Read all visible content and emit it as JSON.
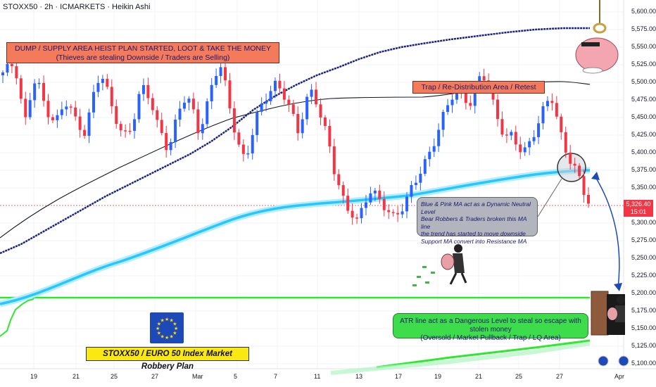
{
  "header": {
    "title": "STOXX50 · 2h · ICMARKETS · Heikin Ashi"
  },
  "annotations": {
    "dump_line1": "DUMP / SUPPLY AREA HEIST PLAN STARTED, LOOT & TAKE THE MONEY",
    "dump_line2": "(Thieves are stealing Downside / Traders are Selling)",
    "trap": "Trap / Re-Distribution Area / Retest",
    "ma_lines": [
      "Blue & Pink MA act as a Dynamic Neutral Level",
      "Bear Robbers & Traders broken this MA line",
      "the trend has started to move downside",
      "Support MA convert into Resistance MA"
    ],
    "atr_line1": "ATR line act as a Dangerous Level to steal so escape with stolen money",
    "atr_line2": "(Oversold / Market Pullback / Trap / LQ Area)",
    "plan": "STOXX50 / EURO 50 Index Market Robbery Plan"
  },
  "price_tag": {
    "value": "5,326.40",
    "timer": "15:01"
  },
  "colors": {
    "up": "#2962ff",
    "down": "#f23645",
    "ma_black": "#131722",
    "ma_cyan": "#26c6ff",
    "atr_green": "#2ee82e",
    "navy": "#1a237e",
    "label_bg": "#f47a5c",
    "flag": "#1e49b8"
  },
  "icons": [
    "eu-flag-icon",
    "thief-pig-icon",
    "running-thief-icon",
    "thief-door-icon",
    "money-icon",
    "arrow-icon"
  ],
  "chart_data": {
    "type": "candlestick",
    "chart_style": "Heikin Ashi",
    "y_axis": {
      "range": [
        5088,
        5618
      ],
      "ticks": [
        "5,600.00",
        "5,575.00",
        "5,550.00",
        "5,525.00",
        "5,500.00",
        "5,475.00",
        "5,450.00",
        "5,425.00",
        "5,400.00",
        "5,375.00",
        "5,350.00",
        "5,300.00",
        "5,275.00",
        "5,250.00",
        "5,225.00",
        "5,200.00",
        "5,175.00",
        "5,150.00",
        "5,125.00",
        "5,100.00"
      ]
    },
    "x_axis": {
      "ticks": [
        "19",
        "21",
        "25",
        "27",
        "Mar",
        "5",
        "7",
        "11",
        "13",
        "17",
        "19",
        "21",
        "25",
        "27",
        "Apr"
      ]
    },
    "last_price": 5326.4,
    "close_series": [
      5510,
      5520,
      5530,
      5480,
      5440,
      5500,
      5495,
      5470,
      5455,
      5445,
      5460,
      5470,
      5450,
      5440,
      5430,
      5470,
      5500,
      5505,
      5480,
      5455,
      5430,
      5420,
      5440,
      5480,
      5500,
      5475,
      5440,
      5420,
      5400,
      5440,
      5470,
      5480,
      5460,
      5430,
      5450,
      5490,
      5515,
      5520,
      5475,
      5440,
      5410,
      5390,
      5420,
      5450,
      5470,
      5490,
      5500,
      5490,
      5470,
      5450,
      5430,
      5470,
      5490,
      5470,
      5440,
      5420,
      5380,
      5350,
      5320,
      5310,
      5300,
      5330,
      5350,
      5340,
      5325,
      5315,
      5310,
      5320,
      5330,
      5345,
      5360,
      5380,
      5400,
      5420,
      5440,
      5460,
      5480,
      5490,
      5480,
      5470,
      5490,
      5510,
      5500,
      5470,
      5440,
      5420,
      5420,
      5410,
      5405,
      5415,
      5430,
      5450,
      5470,
      5480,
      5440,
      5405,
      5385,
      5370,
      5350,
      5335
    ],
    "annotated_levels": {
      "atr_line": 5192,
      "trap_zone": [
        5487,
        5500
      ],
      "supply_zone": [
        5528,
        5552
      ]
    }
  }
}
